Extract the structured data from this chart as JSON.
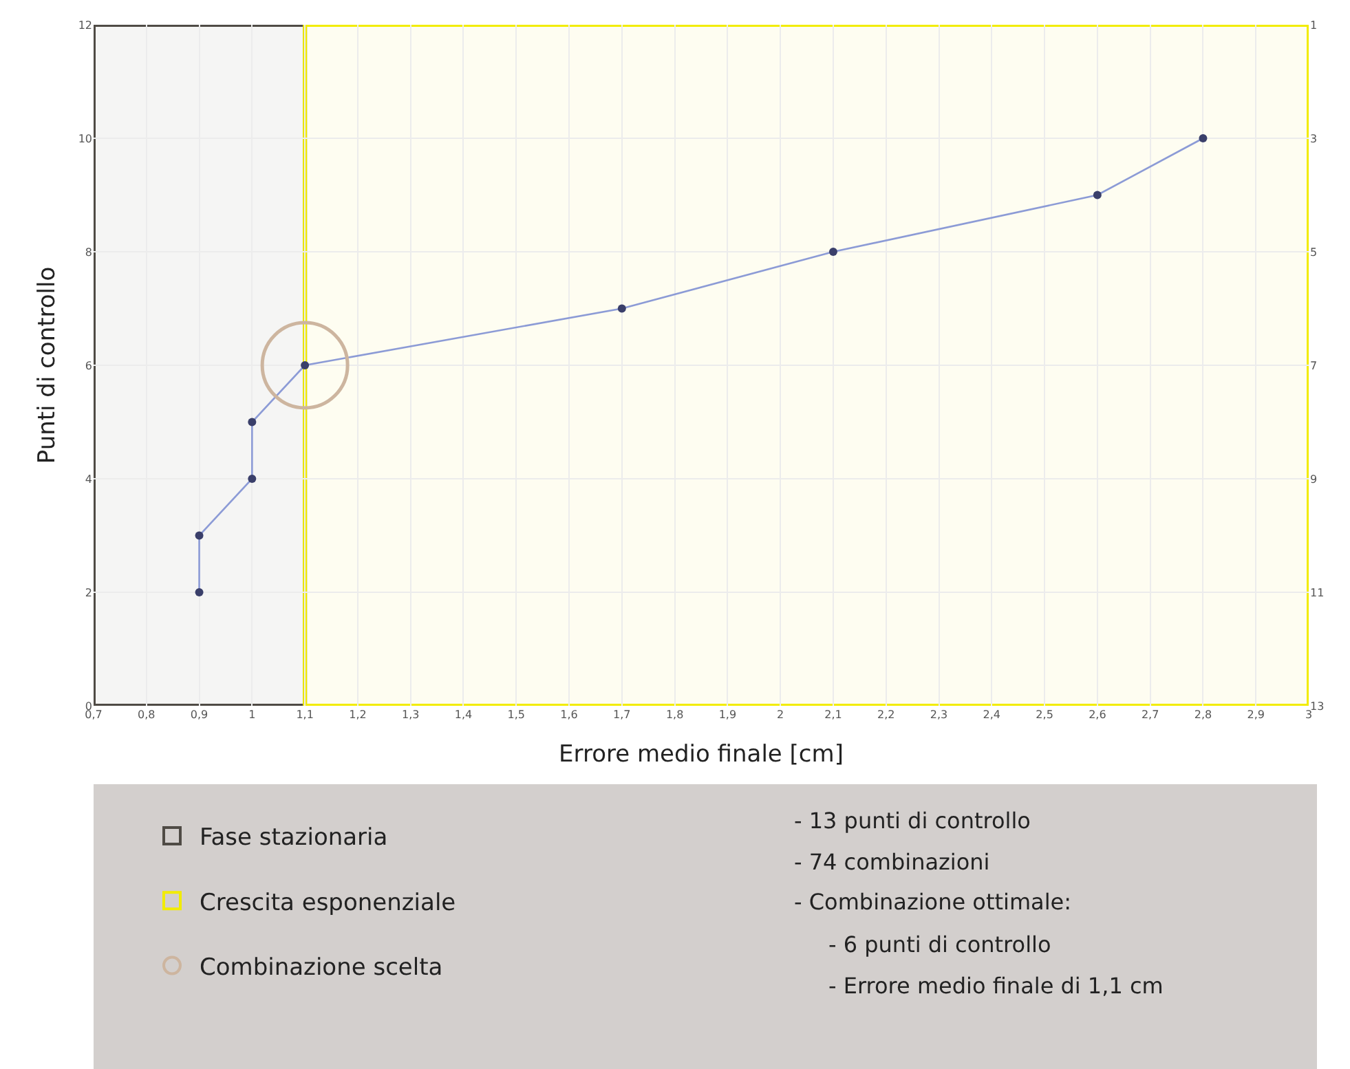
{
  "chart_data": {
    "type": "line",
    "xlabel": "Errore medio finale [cm]",
    "ylabel": "Punti di controllo",
    "x": [
      0.9,
      0.9,
      1,
      1,
      1.1,
      1.7,
      2.1,
      2.6,
      2.8
    ],
    "series": [
      {
        "color": "#8c9bd6",
        "values": [
          2,
          3,
          4,
          5,
          6,
          7,
          8,
          9,
          10
        ]
      },
      {
        "type": "scatter",
        "name": "Combinazione scelta",
        "color": "#cdb59f",
        "x": [
          1.1
        ],
        "values": [
          6
        ]
      }
    ],
    "legend": "bottom left",
    "marker": "circle",
    "line_style": "solid",
    "grid": true,
    "xlim": [
      0.7,
      3
    ],
    "xticks": [
      {
        "value": 0.7,
        "label": "0,7"
      },
      {
        "value": 0.8,
        "label": "0,8"
      },
      {
        "value": 0.9,
        "label": "0,9"
      },
      1,
      {
        "value": 1.1,
        "label": "1,1"
      },
      {
        "value": 1.2,
        "label": "1,2"
      },
      {
        "value": 1.3,
        "label": "1,3"
      },
      {
        "value": 1.4,
        "label": "1,4"
      },
      {
        "value": 1.5,
        "label": "1,5"
      },
      {
        "value": 1.6,
        "label": "1,6"
      },
      {
        "value": 1.7,
        "label": "1,7"
      },
      {
        "value": 1.8,
        "label": "1,8"
      },
      {
        "value": 1.9,
        "label": "1,9"
      },
      2,
      {
        "value": 2.1,
        "label": "2,1"
      },
      {
        "value": 2.2,
        "label": "2,2"
      },
      {
        "value": 2.3,
        "label": "2,3"
      },
      {
        "value": 2.4,
        "label": "2,4"
      },
      {
        "value": 2.5,
        "label": "2,5"
      },
      {
        "value": 2.6,
        "label": "2,6"
      },
      {
        "value": 2.7,
        "label": "2,7"
      },
      {
        "value": 2.8,
        "label": "2,8"
      },
      {
        "value": 2.9,
        "label": "2,9"
      },
      3
    ],
    "ylim": [
      0,
      12
    ],
    "yticks": [
      0,
      2,
      4,
      6,
      8,
      10,
      12
    ],
    "y2lim": [
      13,
      1
    ],
    "y2ticks": [
      1,
      3,
      5,
      7,
      9,
      11,
      13
    ],
    "bands": [
      {
        "axis": "x",
        "from": 0.7,
        "to": 1.1,
        "label": "Fase stazionaria",
        "color": "#4f4b45"
      },
      {
        "axis": "x",
        "from": 1.1,
        "to": 3,
        "label": "Crescita esponenziale",
        "color": "#f2ec00"
      }
    ],
    "annotations": [
      "- 13 punti di controllo",
      "- 74 combinazioni",
      "- Combinazione ottimale:",
      "- 6 punti di controllo",
      "- Errore medio finale di 1,1 cm"
    ]
  }
}
